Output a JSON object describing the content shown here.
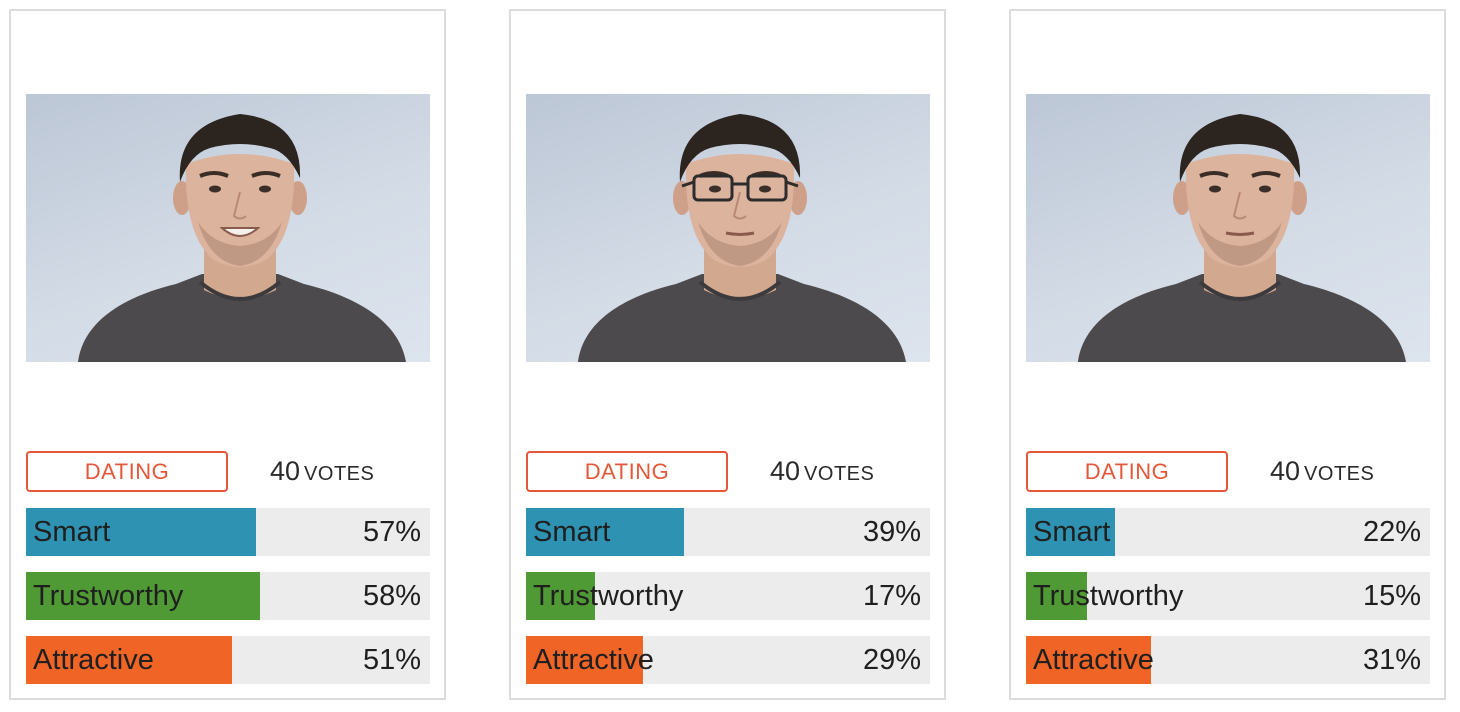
{
  "colors": {
    "accent": "#e4573a",
    "smart": "#2e93b3",
    "trustworthy": "#4f9a34",
    "attractive": "#f06526",
    "track": "#ececec",
    "card_border": "#dcdcdc"
  },
  "cards": [
    {
      "photo": {
        "icon": "portrait-smiling",
        "glasses": false,
        "smile": true
      },
      "category": "DATING",
      "votes": {
        "count": "40",
        "label": "VOTES"
      },
      "ratings": [
        {
          "key": "smart",
          "label": "Smart",
          "percent": 57,
          "text": "57%"
        },
        {
          "key": "trustworthy",
          "label": "Trustworthy",
          "percent": 58,
          "text": "58%"
        },
        {
          "key": "attractive",
          "label": "Attractive",
          "percent": 51,
          "text": "51%"
        }
      ]
    },
    {
      "photo": {
        "icon": "portrait-glasses",
        "glasses": true,
        "smile": false
      },
      "category": "DATING",
      "votes": {
        "count": "40",
        "label": "VOTES"
      },
      "ratings": [
        {
          "key": "smart",
          "label": "Smart",
          "percent": 39,
          "text": "39%"
        },
        {
          "key": "trustworthy",
          "label": "Trustworthy",
          "percent": 17,
          "text": "17%"
        },
        {
          "key": "attractive",
          "label": "Attractive",
          "percent": 29,
          "text": "29%"
        }
      ]
    },
    {
      "photo": {
        "icon": "portrait-neutral",
        "glasses": false,
        "smile": false
      },
      "category": "DATING",
      "votes": {
        "count": "40",
        "label": "VOTES"
      },
      "ratings": [
        {
          "key": "smart",
          "label": "Smart",
          "percent": 22,
          "text": "22%"
        },
        {
          "key": "trustworthy",
          "label": "Trustworthy",
          "percent": 15,
          "text": "15%"
        },
        {
          "key": "attractive",
          "label": "Attractive",
          "percent": 31,
          "text": "31%"
        }
      ]
    }
  ]
}
